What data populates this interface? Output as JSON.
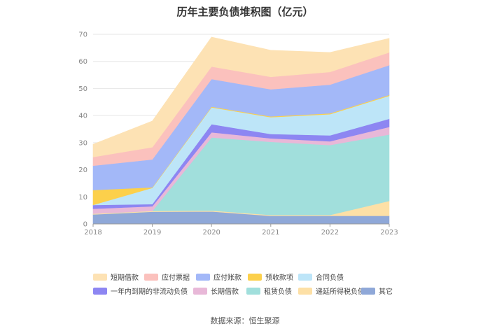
{
  "chart_data": {
    "type": "area",
    "stacked": true,
    "title": "历年主要负债堆积图（亿元）",
    "xlabel": "",
    "ylabel": "",
    "x": [
      "2018",
      "2019",
      "2020",
      "2021",
      "2022",
      "2023"
    ],
    "ylim": [
      0,
      70
    ],
    "yticks": [
      0,
      10,
      20,
      30,
      40,
      50,
      60,
      70
    ],
    "grid": true,
    "legend_position": "bottom",
    "series": [
      {
        "name": "其它",
        "color": "#8fa8d8",
        "values": [
          3.5,
          4.5,
          4.6,
          3.0,
          3.0,
          3.0
        ]
      },
      {
        "name": "递延所得税负债",
        "color": "#fde0a6",
        "values": [
          0.3,
          0.3,
          0.3,
          0.3,
          0.3,
          5.5
        ]
      },
      {
        "name": "租赁负债",
        "color": "#a1dfdc",
        "values": [
          0.0,
          0.0,
          27.0,
          27.0,
          25.8,
          24.5
        ]
      },
      {
        "name": "长期借款",
        "color": "#e8b8d8",
        "values": [
          1.8,
          1.7,
          1.9,
          1.3,
          1.4,
          2.8
        ]
      },
      {
        "name": "一年内到期的非流动负债",
        "color": "#8d86f2",
        "values": [
          1.4,
          0.8,
          3.0,
          1.6,
          2.2,
          3.0
        ]
      },
      {
        "name": "合同负债",
        "color": "#bde5f8",
        "values": [
          0.0,
          6.0,
          6.2,
          6.2,
          7.8,
          8.5
        ]
      },
      {
        "name": "预收款项",
        "color": "#fcd04b",
        "values": [
          5.5,
          0.2,
          0.3,
          0.3,
          0.3,
          0.3
        ]
      },
      {
        "name": "应付账款",
        "color": "#a3b8f8",
        "values": [
          9.0,
          10.3,
          10.2,
          10.0,
          10.6,
          11.0
        ]
      },
      {
        "name": "应付票据",
        "color": "#fbc1bd",
        "values": [
          3.2,
          4.5,
          4.6,
          4.6,
          4.7,
          4.7
        ]
      },
      {
        "name": "短期借款",
        "color": "#fde2b4",
        "values": [
          4.7,
          9.7,
          10.9,
          9.8,
          7.2,
          5.2
        ]
      }
    ]
  },
  "legend_order": [
    "短期借款",
    "应付票据",
    "应付账款",
    "预收款项",
    "合同负债",
    "一年内到期的非流动负债",
    "长期借款",
    "租赁负债",
    "递延所得税负债",
    "其它"
  ],
  "source_note": "数据来源：恒生聚源"
}
